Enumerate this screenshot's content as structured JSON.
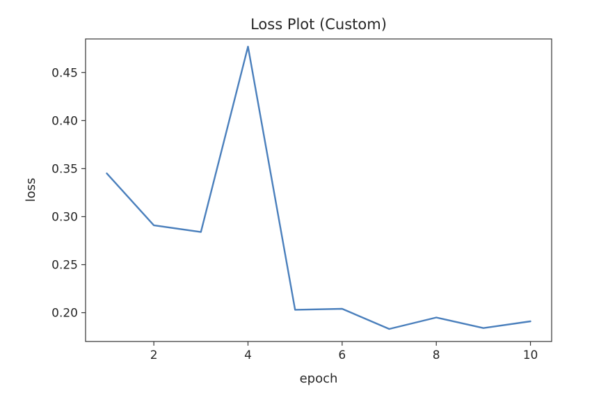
{
  "chart_data": {
    "type": "line",
    "title": "Loss Plot (Custom)",
    "xlabel": "epoch",
    "ylabel": "loss",
    "xlim": [
      0.55,
      10.45
    ],
    "ylim": [
      0.17,
      0.485
    ],
    "xticks": [
      2,
      4,
      6,
      8,
      10
    ],
    "xtick_labels": [
      "2",
      "4",
      "6",
      "8",
      "10"
    ],
    "yticks": [
      0.2,
      0.25,
      0.3,
      0.35,
      0.4,
      0.45
    ],
    "ytick_labels": [
      "0.20",
      "0.25",
      "0.30",
      "0.35",
      "0.40",
      "0.45"
    ],
    "grid": false,
    "series": [
      {
        "color": "#4a7fbc",
        "x": [
          1,
          2,
          3,
          4,
          5,
          6,
          7,
          8,
          9,
          10
        ],
        "y": [
          0.345,
          0.291,
          0.284,
          0.477,
          0.203,
          0.204,
          0.183,
          0.195,
          0.184,
          0.191
        ]
      }
    ]
  }
}
